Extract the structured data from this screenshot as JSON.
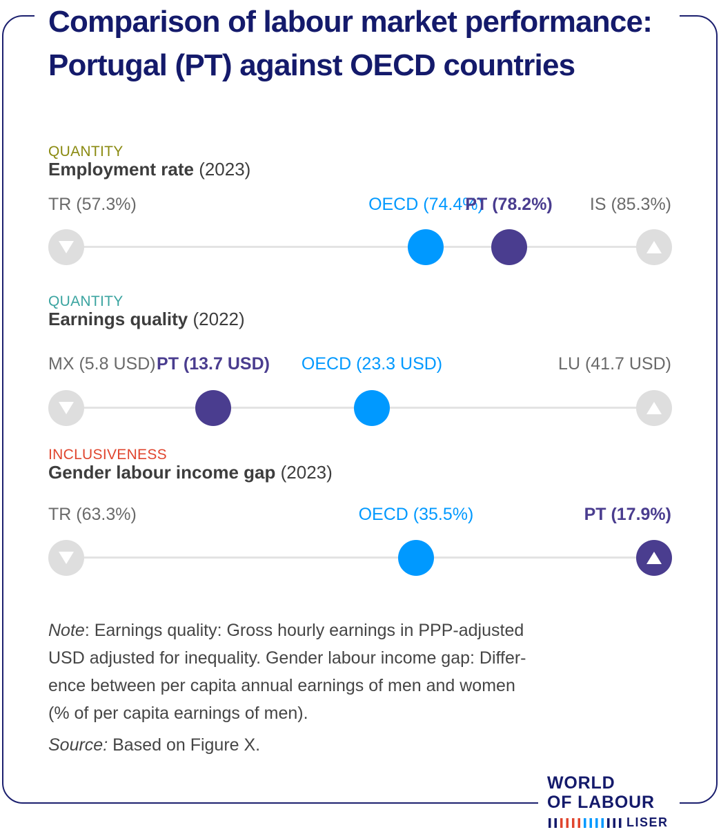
{
  "title_lines": [
    "Comparison of labour market performance:",
    "Portugal (PT) against OECD countries"
  ],
  "chart_data": [
    {
      "type": "dot-range",
      "category": "QUANTITY",
      "category_color": "#8a8a10",
      "metric": "Employment rate",
      "year": "(2023)",
      "low": {
        "code": "TR",
        "text": "TR (57.3%)",
        "value": 57.3
      },
      "high": {
        "code": "IS",
        "text": "IS (85.3%)",
        "value": 85.3
      },
      "oecd": {
        "text": "OECD (74.4%)",
        "value": 74.4,
        "position": 0.612
      },
      "pt": {
        "text": "PT (78.2%)",
        "value": 78.2,
        "position": 0.753
      },
      "pt_at_end": false
    },
    {
      "type": "dot-range",
      "category": "QUANTITY",
      "category_color": "#3aa4a0",
      "metric": "Earnings quality",
      "year": "(2022)",
      "low": {
        "code": "MX",
        "text": "MX (5.8 USD)",
        "value": 5.8
      },
      "high": {
        "code": "LU",
        "text": "LU (41.7 USD)",
        "value": 41.7
      },
      "pt": {
        "text": "PT (13.7 USD)",
        "value": 13.7,
        "position": 0.25
      },
      "oecd": {
        "text": "OECD (23.3 USD)",
        "value": 23.3,
        "position": 0.52
      },
      "pt_at_end": false
    },
    {
      "type": "dot-range",
      "category": "INCLUSIVENESS",
      "category_color": "#e0452e",
      "metric": "Gender labour income gap",
      "year": "(2023)",
      "low": {
        "code": "TR",
        "text": "TR (63.3%)",
        "value": 63.3
      },
      "high": {
        "code": "PT",
        "text": "PT (17.9%)",
        "value": 17.9
      },
      "oecd": {
        "text": "OECD (35.5%)",
        "value": 35.5,
        "position": 0.595
      },
      "pt": {
        "text": "PT (17.9%)",
        "value": 17.9,
        "position": 1.0
      },
      "pt_at_end": true
    }
  ],
  "note": {
    "label": "Note",
    "lines": [
      ": Earnings quality: Gross hourly earnings in PPP-adjusted",
      "USD adjusted for inequality. Gender labour income gap: Differ-",
      "ence between per capita annual earnings of men and women",
      "(% of per capita earnings of men)."
    ]
  },
  "source": {
    "label": "Source:",
    "text": " Based on Figure X."
  },
  "logo": {
    "line1": "WORLD",
    "line2": "OF LABOUR",
    "line3": "LISER",
    "bar_colors": [
      "#141a6b",
      "#141a6b",
      "#e0452e",
      "#e0452e",
      "#e0452e",
      "#e0452e",
      "#0099ff",
      "#0099ff",
      "#0099ff",
      "#0099ff",
      "#141a6b",
      "#141a6b",
      "#141a6b"
    ]
  }
}
